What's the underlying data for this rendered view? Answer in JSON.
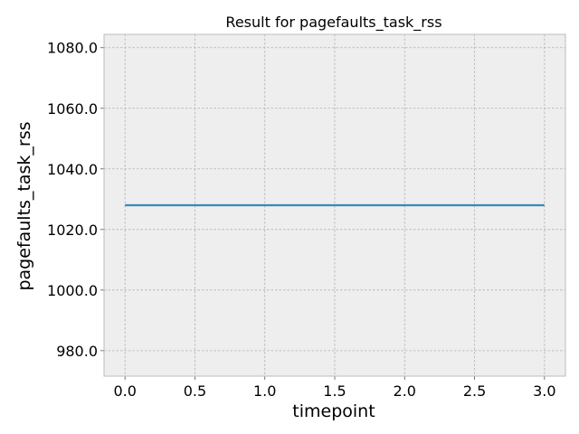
{
  "chart_data": {
    "type": "line",
    "title": "Result for pagefaults_task_rss",
    "xlabel": "timepoint",
    "ylabel": "pagefaults_task_rss",
    "xlim": [
      -0.15,
      3.15
    ],
    "ylim": [
      971.6,
      1084.4
    ],
    "x_ticks": [
      0.0,
      0.5,
      1.0,
      1.5,
      2.0,
      2.5,
      3.0
    ],
    "x_tick_labels": [
      "0.0",
      "0.5",
      "1.0",
      "1.5",
      "2.0",
      "2.5",
      "3.0"
    ],
    "y_ticks": [
      980.0,
      1000.0,
      1020.0,
      1040.0,
      1060.0,
      1080.0
    ],
    "y_tick_labels": [
      "980.0",
      "1000.0",
      "1020.0",
      "1040.0",
      "1060.0",
      "1080.0"
    ],
    "grid": true,
    "legend": "none",
    "series": [
      {
        "x": [
          0,
          1,
          2,
          3
        ],
        "y": [
          1028,
          1028,
          1028,
          1028
        ],
        "color": "#348abd"
      }
    ],
    "colors": {
      "plot_bg": "#eeeeee",
      "grid": "#b2b2b2",
      "spine": "#bcbcbc"
    }
  }
}
